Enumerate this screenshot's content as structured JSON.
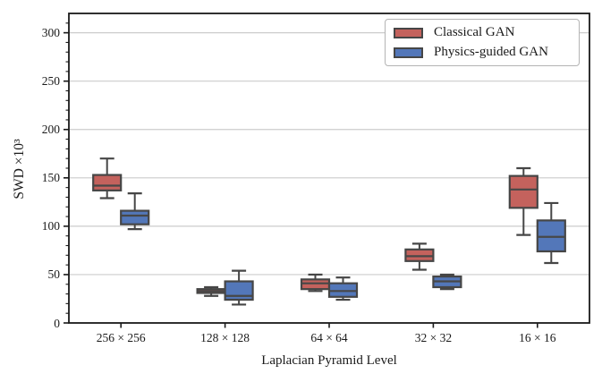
{
  "figure": {
    "background": "#ffffff"
  },
  "chart_data": {
    "type": "boxplot",
    "title": "",
    "xlabel": "Laplacian Pyramid Level",
    "ylabel": "SWD ×10³",
    "categories": [
      "256 × 256",
      "128 × 128",
      "64 × 64",
      "32 × 32",
      "16 × 16"
    ],
    "ylim": [
      0,
      320
    ],
    "yticks_major": [
      0,
      50,
      100,
      150,
      200,
      250,
      300
    ],
    "ytick_minor_step": 10,
    "grid": "horizontal",
    "legend": {
      "position": "upper right"
    },
    "series": [
      {
        "name": "Classical GAN",
        "color": "#c4625d",
        "boxes": [
          {
            "category": "256 × 256",
            "whisker_low": 129,
            "q1": 137,
            "median": 142,
            "q3": 153,
            "whisker_high": 170
          },
          {
            "category": "128 × 128",
            "whisker_low": 28,
            "q1": 31,
            "median": 33,
            "q3": 35,
            "whisker_high": 37
          },
          {
            "category": "64 × 64",
            "whisker_low": 33,
            "q1": 35,
            "median": 41,
            "q3": 45,
            "whisker_high": 50
          },
          {
            "category": "32 × 32",
            "whisker_low": 55,
            "q1": 64,
            "median": 69,
            "q3": 76,
            "whisker_high": 82
          },
          {
            "category": "16 × 16",
            "whisker_low": 91,
            "q1": 119,
            "median": 138,
            "q3": 152,
            "whisker_high": 160
          }
        ]
      },
      {
        "name": "Physics-guided GAN",
        "color": "#5377b9",
        "boxes": [
          {
            "category": "256 × 256",
            "whisker_low": 97,
            "q1": 102,
            "median": 111,
            "q3": 116,
            "whisker_high": 134
          },
          {
            "category": "128 × 128",
            "whisker_low": 19,
            "q1": 24,
            "median": 28,
            "q3": 43,
            "whisker_high": 54
          },
          {
            "category": "64 × 64",
            "whisker_low": 24,
            "q1": 27,
            "median": 33,
            "q3": 41,
            "whisker_high": 47
          },
          {
            "category": "32 × 32",
            "whisker_low": 35,
            "q1": 37,
            "median": 43,
            "q3": 48,
            "whisker_high": 50
          },
          {
            "category": "16 × 16",
            "whisker_low": 62,
            "q1": 74,
            "median": 89,
            "q3": 106,
            "whisker_high": 124
          }
        ]
      }
    ],
    "style": {
      "box_edge_color": "#464646",
      "median_color": "#474747",
      "grid_color": "#cccccc",
      "spine_color": "#1a1a1a",
      "tick_color": "#1a1a1a"
    }
  }
}
